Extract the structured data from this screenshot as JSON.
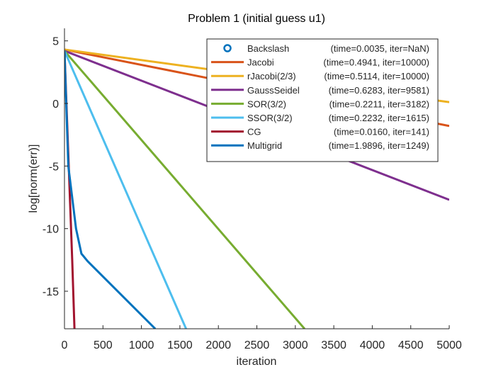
{
  "chart_data": {
    "type": "line",
    "title": "Problem 1 (initial guess u1)",
    "xlabel": "iteration",
    "ylabel": "log[norm(err)]",
    "xlim": [
      0,
      5000
    ],
    "ylim": [
      -18,
      6
    ],
    "xticks": [
      0,
      500,
      1000,
      1500,
      2000,
      2500,
      3000,
      3500,
      4000,
      4500,
      5000
    ],
    "yticks": [
      5,
      0,
      -5,
      -10,
      -15
    ],
    "grid": false,
    "legend_position": "top-right",
    "series": [
      {
        "name": "Backslash",
        "info": "(time=0.0035, iter=NaN)",
        "color": "#0072BD",
        "style": "marker",
        "points": []
      },
      {
        "name": "Jacobi",
        "info": "(time=0.4941, iter=10000)",
        "color": "#D95319",
        "style": "line",
        "points": [
          [
            0,
            4.3
          ],
          [
            5000,
            -1.8
          ]
        ]
      },
      {
        "name": "rJacobi(2/3)",
        "info": "(time=0.5114, iter=10000)",
        "color": "#EDB120",
        "style": "line",
        "points": [
          [
            0,
            4.3
          ],
          [
            5000,
            0.1
          ]
        ]
      },
      {
        "name": "GaussSeidel",
        "info": "(time=0.6283, iter=9581)",
        "color": "#7E2F8E",
        "style": "line",
        "points": [
          [
            0,
            4.2
          ],
          [
            5000,
            -7.7
          ]
        ]
      },
      {
        "name": "SOR(3/2)",
        "info": "(time=0.2211, iter=3182)",
        "color": "#77AC30",
        "style": "line",
        "points": [
          [
            0,
            4.2
          ],
          [
            3120,
            -18
          ]
        ]
      },
      {
        "name": "SSOR(3/2)",
        "info": "(time=0.2232, iter=1615)",
        "color": "#4DBEEE",
        "style": "line",
        "points": [
          [
            0,
            4.2
          ],
          [
            1580,
            -18
          ]
        ]
      },
      {
        "name": "CG",
        "info": "(time=0.0160, iter=141)",
        "color": "#A2142F",
        "style": "line",
        "points": [
          [
            0,
            4.2
          ],
          [
            100,
            -12.5
          ],
          [
            130,
            -18
          ]
        ]
      },
      {
        "name": "Multigrid",
        "info": "(time=1.9896, iter=1249)",
        "color": "#0072BD",
        "style": "line",
        "points": [
          [
            0,
            4.2
          ],
          [
            50,
            -5
          ],
          [
            150,
            -10
          ],
          [
            220,
            -12
          ],
          [
            300,
            -12.6
          ],
          [
            1180,
            -18
          ]
        ]
      }
    ]
  }
}
